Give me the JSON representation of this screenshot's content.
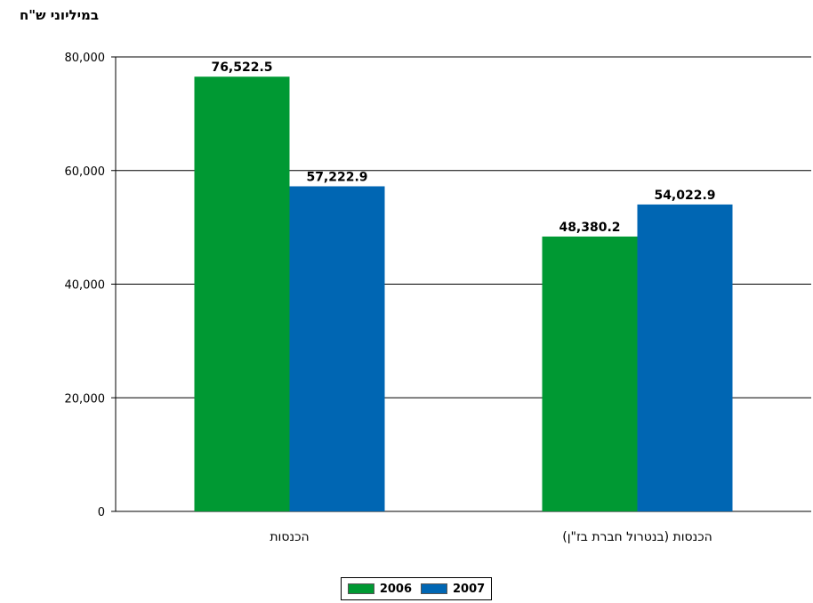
{
  "chart_data": {
    "type": "bar",
    "ylabel": "במיליוני ש\"ח",
    "categories": [
      "הכנסות",
      "הכנסות (בנטרול חברת בז\"ן)"
    ],
    "series": [
      {
        "name": "2006",
        "values": [
          76522.5,
          48380.2
        ],
        "labels": [
          "76,522.5",
          "48,380.2"
        ],
        "color": "#009933"
      },
      {
        "name": "2007",
        "values": [
          57222.9,
          54022.9
        ],
        "labels": [
          "57,222.9",
          "54,022.9"
        ],
        "color": "#0066b3"
      }
    ],
    "ylim": [
      0,
      80000
    ],
    "yticks": [
      0,
      20000,
      40000,
      60000,
      80000
    ],
    "ytick_labels": [
      "0",
      "20,000",
      "40,000",
      "60,000",
      "80,000"
    ],
    "grid": true,
    "legend": "bottom"
  }
}
